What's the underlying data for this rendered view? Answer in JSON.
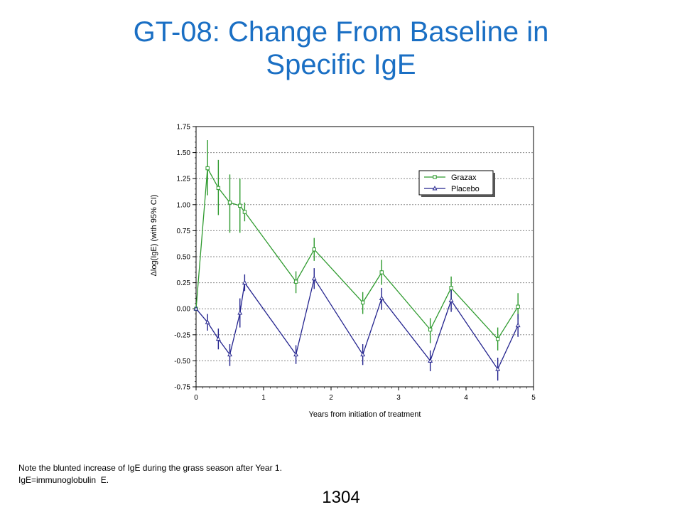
{
  "slide": {
    "title_line1": "GT-08: Change From Baseline in",
    "title_line2": "Specific IgE",
    "footnote_line1": "Note the blunted increase of IgE during the grass season after Year 1.",
    "footnote_line2": "IgE=immunoglobulin  E.",
    "page_number": "1304"
  },
  "chart_data": {
    "type": "line",
    "title": "",
    "xlabel": "Years from initiation of treatment",
    "ylabel": "Δlog(IgE) (with 95% CI)",
    "xlim": [
      0,
      5
    ],
    "ylim": [
      -0.75,
      1.75
    ],
    "x_ticks": [
      0,
      1,
      2,
      3,
      4,
      5
    ],
    "x_tick_labels": [
      "0",
      "1",
      "2",
      "3",
      "4",
      "5"
    ],
    "y_ticks": [
      -0.75,
      -0.5,
      -0.25,
      0.0,
      0.25,
      0.5,
      0.75,
      1.0,
      1.25,
      1.5,
      1.75
    ],
    "y_tick_labels": [
      "-0.75",
      "-0.50",
      "-0.25",
      "0.00",
      "0.25",
      "0.50",
      "0.75",
      "1.00",
      "1.25",
      "1.50",
      "1.75"
    ],
    "grid": "horizontal dashed",
    "legend_position": "upper-right",
    "series": [
      {
        "name": "Grazax",
        "color": "#2e9a2e",
        "marker": "square",
        "x": [
          0,
          0.17,
          0.33,
          0.5,
          0.65,
          0.72,
          1.48,
          1.75,
          2.47,
          2.75,
          3.47,
          3.78,
          4.47,
          4.77
        ],
        "y": [
          0.0,
          1.35,
          1.16,
          1.02,
          0.99,
          0.93,
          0.26,
          0.57,
          0.06,
          0.35,
          -0.2,
          0.2,
          -0.29,
          0.02
        ],
        "lower": [
          0.0,
          1.09,
          0.9,
          0.73,
          0.73,
          0.84,
          0.15,
          0.46,
          -0.05,
          0.23,
          -0.33,
          0.1,
          -0.4,
          -0.1
        ],
        "upper": [
          0.0,
          1.62,
          1.43,
          1.29,
          1.25,
          1.02,
          0.36,
          0.68,
          0.16,
          0.47,
          -0.09,
          0.31,
          -0.18,
          0.15
        ]
      },
      {
        "name": "Placebo",
        "color": "#23238e",
        "marker": "triangle",
        "x": [
          0,
          0.17,
          0.33,
          0.5,
          0.65,
          0.72,
          1.48,
          1.75,
          2.47,
          2.75,
          3.47,
          3.78,
          4.47,
          4.77
        ],
        "y": [
          0.0,
          -0.13,
          -0.29,
          -0.44,
          -0.04,
          0.25,
          -0.44,
          0.29,
          -0.44,
          0.1,
          -0.5,
          0.08,
          -0.58,
          -0.16
        ],
        "lower": [
          0.0,
          -0.21,
          -0.39,
          -0.55,
          -0.18,
          0.17,
          -0.53,
          0.19,
          -0.54,
          -0.01,
          -0.6,
          -0.03,
          -0.69,
          -0.27
        ],
        "upper": [
          0.0,
          -0.05,
          -0.19,
          -0.34,
          0.1,
          0.33,
          -0.35,
          0.39,
          -0.34,
          0.2,
          -0.4,
          0.18,
          -0.47,
          -0.05
        ]
      }
    ]
  }
}
